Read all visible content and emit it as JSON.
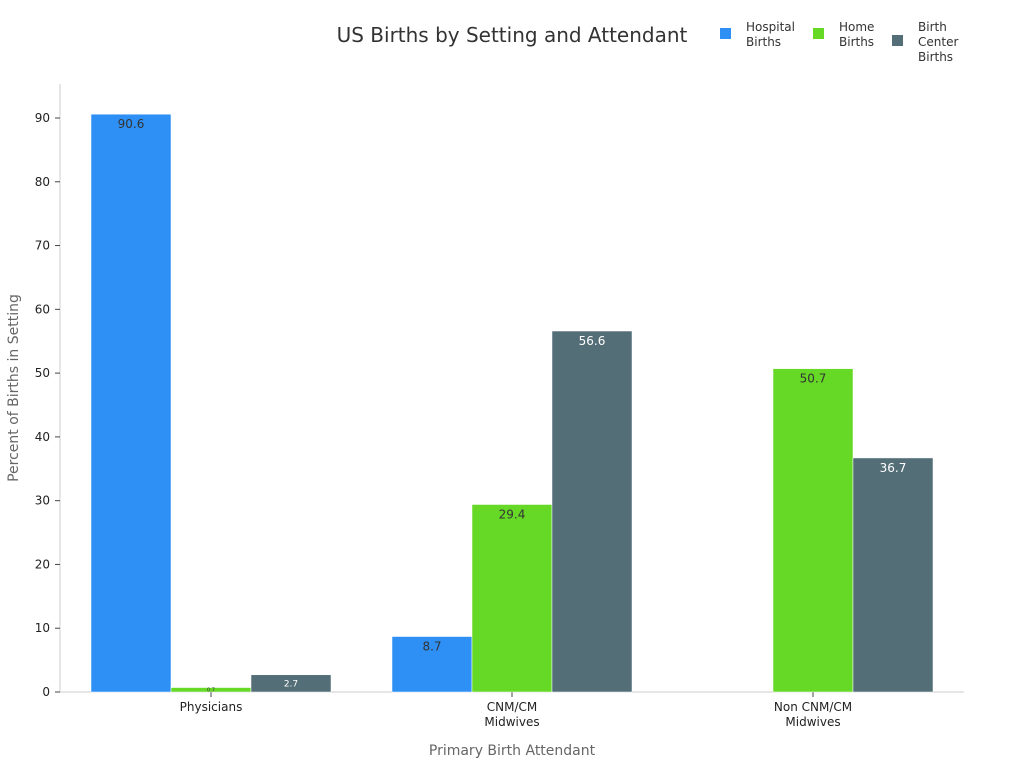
{
  "chart_data": {
    "type": "bar",
    "title": "US Births by Setting and Attendant",
    "xlabel": "Primary Birth Attendant",
    "ylabel": "Percent of Births in Setting",
    "categories": [
      [
        "Physicians"
      ],
      [
        "CNM/CM",
        "Midwives"
      ],
      [
        "Non CNM/CM",
        "Midwives"
      ]
    ],
    "ylim": [
      0,
      95
    ],
    "yticks": [
      0,
      10,
      20,
      30,
      40,
      50,
      60,
      70,
      80,
      90
    ],
    "grid": false,
    "legend_position": "top-right",
    "series": [
      {
        "name": [
          "Hospital",
          "Births"
        ],
        "color": "#2e90f5",
        "label_color": "#333333",
        "values": [
          90.6,
          8.7,
          null
        ]
      },
      {
        "name": [
          "Home",
          "Births"
        ],
        "color": "#66d926",
        "label_color": "#333333",
        "values": [
          0.7,
          29.4,
          50.7
        ]
      },
      {
        "name": [
          "Birth",
          "Center",
          "Births"
        ],
        "color": "#546e78",
        "label_color": "#ffffff",
        "values": [
          2.7,
          56.6,
          36.7
        ]
      }
    ]
  }
}
